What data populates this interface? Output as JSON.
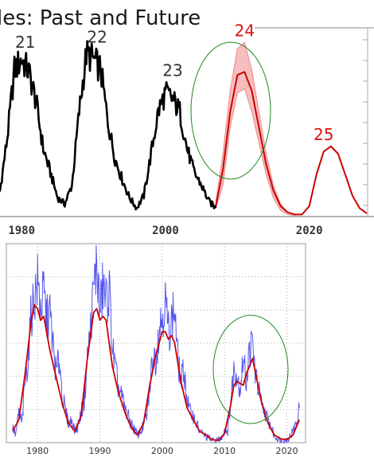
{
  "chart_data": [
    {
      "type": "line",
      "title": "les: Past and Future",
      "x_ticks": [
        1980,
        2000,
        2020
      ],
      "cycle_labels": [
        {
          "label": "21",
          "x": 1980.5,
          "y": 155,
          "color": "#333333"
        },
        {
          "label": "22",
          "x": 1990.5,
          "y": 160,
          "color": "#333333"
        },
        {
          "label": "23",
          "x": 2001.0,
          "y": 128,
          "color": "#333333"
        },
        {
          "label": "24",
          "x": 2011.0,
          "y": 166,
          "color": "#dd1111"
        },
        {
          "label": "25",
          "x": 2022.0,
          "y": 67,
          "color": "#dd1111"
        }
      ],
      "series": [
        {
          "style": "observed",
          "color": "#000000",
          "x": [
            1976,
            1977,
            1978,
            1979,
            1980,
            1981,
            1982,
            1983,
            1984,
            1985,
            1986,
            1987,
            1988,
            1989,
            1990,
            1991,
            1992,
            1993,
            1994,
            1995,
            1996,
            1997,
            1998,
            1999,
            2000,
            2001,
            2002,
            2003,
            2004,
            2005,
            2006,
            2007
          ],
          "y": [
            12,
            25,
            75,
            140,
            150,
            138,
            110,
            65,
            42,
            18,
            12,
            30,
            100,
            155,
            150,
            140,
            90,
            55,
            35,
            18,
            8,
            20,
            60,
            100,
            118,
            112,
            100,
            65,
            42,
            30,
            15,
            8
          ]
        },
        {
          "style": "prediction-band",
          "color": "#ee8888",
          "x": [
            2007,
            2008,
            2009,
            2010,
            2011,
            2012,
            2013,
            2014,
            2015,
            2016,
            2017,
            2018
          ],
          "y_low": [
            8,
            30,
            85,
            118,
            122,
            100,
            70,
            40,
            18,
            6,
            2,
            1
          ],
          "y_high": [
            14,
            60,
            120,
            160,
            166,
            140,
            100,
            60,
            30,
            12,
            4,
            2
          ]
        },
        {
          "style": "prediction",
          "color": "#cc0000",
          "x": [
            2007,
            2008,
            2009,
            2010,
            2011,
            2012,
            2013,
            2014,
            2015,
            2016,
            2017,
            2018,
            2019,
            2020,
            2021,
            2022,
            2023,
            2024,
            2025,
            2026,
            2027,
            2028
          ],
          "y": [
            10,
            45,
            100,
            135,
            138,
            120,
            85,
            50,
            25,
            10,
            4,
            2,
            2,
            10,
            40,
            62,
            67,
            60,
            40,
            20,
            8,
            3
          ]
        }
      ],
      "xlim": [
        1975,
        2029
      ],
      "ylim": [
        0,
        180
      ],
      "grid": false,
      "highlight": {
        "shape": "ellipse",
        "color": "#228822",
        "around": "24"
      }
    },
    {
      "type": "line",
      "x_ticks": [
        1980,
        1990,
        2000,
        2010,
        2020
      ],
      "series": [
        {
          "style": "monthly",
          "color": "#5555ee",
          "x": [
            1976.0,
            1976.5,
            1977.0,
            1977.5,
            1978.0,
            1978.5,
            1979.0,
            1979.5,
            1980.0,
            1980.5,
            1981.0,
            1981.5,
            1982.0,
            1982.5,
            1983.0,
            1983.5,
            1984.0,
            1984.5,
            1985.0,
            1985.5,
            1986.0,
            1986.5,
            1987.0,
            1987.5,
            1988.0,
            1988.5,
            1989.0,
            1989.5,
            1990.0,
            1990.5,
            1991.0,
            1991.5,
            1992.0,
            1992.5,
            1993.0,
            1993.5,
            1994.0,
            1994.5,
            1995.0,
            1995.5,
            1996.0,
            1996.5,
            1997.0,
            1997.5,
            1998.0,
            1998.5,
            1999.0,
            1999.5,
            2000.0,
            2000.5,
            2001.0,
            2001.5,
            2002.0,
            2002.5,
            2003.0,
            2003.5,
            2004.0,
            2004.5,
            2005.0,
            2005.5,
            2006.0,
            2006.5,
            2007.0,
            2007.5,
            2008.0,
            2008.5,
            2009.0,
            2009.5,
            2010.0,
            2010.5,
            2011.0,
            2011.5,
            2012.0,
            2012.5,
            2013.0,
            2013.5,
            2014.0,
            2014.5,
            2015.0,
            2015.5,
            2016.0,
            2016.5,
            2017.0,
            2017.5,
            2018.0,
            2018.5,
            2019.0,
            2019.5,
            2020.0,
            2020.5,
            2021.0,
            2021.5,
            2022.0
          ],
          "y": [
            20,
            10,
            40,
            25,
            80,
            110,
            170,
            190,
            210,
            175,
            195,
            160,
            170,
            125,
            90,
            110,
            60,
            40,
            25,
            30,
            15,
            22,
            40,
            55,
            110,
            150,
            200,
            235,
            170,
            205,
            185,
            200,
            125,
            95,
            70,
            60,
            45,
            35,
            25,
            18,
            10,
            14,
            22,
            35,
            70,
            115,
            110,
            150,
            165,
            185,
            145,
            160,
            175,
            110,
            80,
            95,
            55,
            40,
            35,
            25,
            15,
            12,
            8,
            6,
            3,
            2,
            4,
            5,
            18,
            15,
            55,
            95,
            90,
            70,
            110,
            80,
            120,
            130,
            85,
            70,
            45,
            40,
            28,
            20,
            8,
            6,
            3,
            2,
            4,
            8,
            15,
            25,
            45
          ]
        },
        {
          "style": "smoothed",
          "color": "#cc0000",
          "x": [
            1976,
            1977,
            1978,
            1979,
            1979.5,
            1980,
            1980.5,
            1981,
            1982,
            1983,
            1984,
            1985,
            1986,
            1987,
            1988,
            1989,
            1989.5,
            1990,
            1990.5,
            1991,
            1992,
            1993,
            1994,
            1995,
            1996,
            1997,
            1998,
            1999,
            2000,
            2000.5,
            2001,
            2001.5,
            2002,
            2003,
            2004,
            2005,
            2006,
            2007,
            2008,
            2009,
            2010,
            2011,
            2011.5,
            2012,
            2013,
            2013.5,
            2014,
            2014.5,
            2015,
            2016,
            2017,
            2018,
            2019,
            2020,
            2021,
            2022
          ],
          "y": [
            15,
            30,
            90,
            160,
            180,
            175,
            160,
            165,
            120,
            85,
            50,
            25,
            15,
            35,
            110,
            170,
            175,
            160,
            165,
            160,
            100,
            65,
            40,
            20,
            10,
            25,
            75,
            115,
            145,
            145,
            135,
            140,
            130,
            80,
            45,
            30,
            15,
            10,
            4,
            3,
            12,
            50,
            75,
            80,
            75,
            90,
            100,
            110,
            90,
            50,
            25,
            10,
            5,
            4,
            10,
            30
          ]
        }
      ],
      "xlim": [
        1975,
        2023
      ],
      "ylim": [
        0,
        260
      ],
      "grid": true,
      "highlight": {
        "shape": "ellipse",
        "color": "#228822",
        "around": "2010-2016"
      }
    }
  ]
}
